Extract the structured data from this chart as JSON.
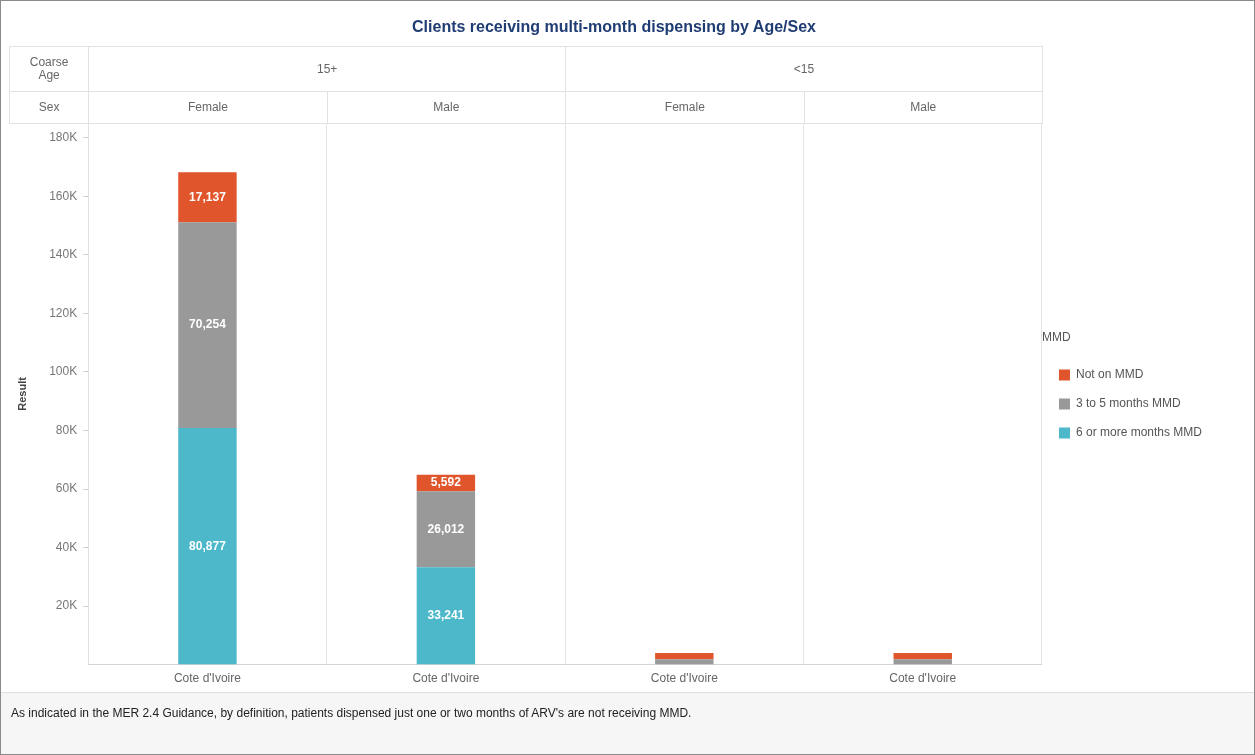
{
  "chart_data": {
    "type": "bar",
    "title": "Clients receiving multi-month dispensing by Age/Sex",
    "ylabel": "Result",
    "legend_title": "MMD",
    "annotations": [
      "Coarse Age",
      "15+",
      "<15",
      "Sex",
      "Female",
      "Male",
      "Female",
      "Male",
      "As indicated in the MER 2.4 Guidance, by definition, patients dispensed just one or two months of ARV's are not receiving MMD."
    ],
    "categories": [
      "Cote d'Ivoire",
      "Cote d'Ivoire",
      "Cote d'Ivoire",
      "Cote d'Ivoire"
    ],
    "stacked": true,
    "series": [
      {
        "name": "6 or more months MMD",
        "color": "#4cb8c9",
        "values": [
          80877,
          33241,
          null,
          null
        ],
        "value_labels": [
          "80,877",
          "33,241",
          null,
          null
        ]
      },
      {
        "name": "3 to 5 months MMD",
        "color": "#999999",
        "values": [
          70254,
          26012,
          1800,
          1800
        ],
        "value_labels": [
          "70,254",
          "26,012",
          null,
          null
        ]
      },
      {
        "name": "Not on MMD",
        "color": "#e0552b",
        "values": [
          17137,
          5592,
          2200,
          2200
        ],
        "value_labels": [
          "17,137",
          "5,592",
          null,
          null
        ]
      }
    ],
    "ylim": [
      0,
      185000
    ],
    "yticks": [
      {
        "value": 20000,
        "label": "20K"
      },
      {
        "value": 40000,
        "label": "40K"
      },
      {
        "value": 60000,
        "label": "60K"
      },
      {
        "value": 80000,
        "label": "80K"
      },
      {
        "value": 100000,
        "label": "100K"
      },
      {
        "value": 120000,
        "label": "120K"
      },
      {
        "value": 140000,
        "label": "140K"
      },
      {
        "value": 160000,
        "label": "160K"
      },
      {
        "value": 180000,
        "label": "180K"
      }
    ],
    "grid": "x",
    "legend": "right"
  }
}
